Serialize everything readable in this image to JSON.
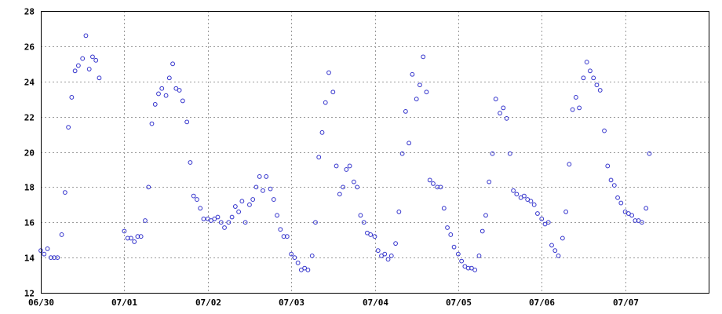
{
  "chart_data": {
    "type": "scatter",
    "title": "",
    "xlabel": "",
    "ylabel": "",
    "x_unit": "days since 06/30 00:00",
    "xlim": [
      0,
      8
    ],
    "ylim": [
      12,
      28
    ],
    "y_ticks": [
      12,
      14,
      16,
      18,
      20,
      22,
      24,
      26,
      28
    ],
    "x_ticks": [
      {
        "value": 0,
        "label": "06/30"
      },
      {
        "value": 1,
        "label": "07/01"
      },
      {
        "value": 2,
        "label": "07/02"
      },
      {
        "value": 3,
        "label": "07/03"
      },
      {
        "value": 4,
        "label": "07/04"
      },
      {
        "value": 5,
        "label": "07/05"
      },
      {
        "value": 6,
        "label": "07/06"
      },
      {
        "value": 7,
        "label": "07/07"
      }
    ],
    "grid": true,
    "legend": "none",
    "marker_color": "#3333cc",
    "series": [
      {
        "x": [
          0.0,
          0.04,
          0.08,
          0.12,
          0.16,
          0.2,
          0.25,
          0.29,
          0.33,
          0.37,
          0.41,
          0.45,
          0.5,
          0.54,
          0.58,
          0.62,
          0.66,
          0.7,
          1.0,
          1.04,
          1.08,
          1.12,
          1.16,
          1.2,
          1.25,
          1.29,
          1.33,
          1.37,
          1.41,
          1.45,
          1.5,
          1.54,
          1.58,
          1.62,
          1.66,
          1.7,
          1.75,
          1.79,
          1.83,
          1.87,
          1.91,
          1.95,
          2.0,
          2.04,
          2.08,
          2.12,
          2.16,
          2.2,
          2.25,
          2.29,
          2.33,
          2.37,
          2.41,
          2.45,
          2.5,
          2.54,
          2.58,
          2.62,
          2.66,
          2.7,
          2.75,
          2.79,
          2.83,
          2.87,
          2.91,
          2.95,
          3.0,
          3.04,
          3.08,
          3.12,
          3.16,
          3.2,
          3.25,
          3.29,
          3.33,
          3.37,
          3.41,
          3.45,
          3.5,
          3.54,
          3.58,
          3.62,
          3.66,
          3.7,
          3.75,
          3.79,
          3.83,
          3.87,
          3.91,
          3.95,
          4.0,
          4.04,
          4.08,
          4.12,
          4.16,
          4.2,
          4.25,
          4.29,
          4.33,
          4.37,
          4.41,
          4.45,
          4.5,
          4.54,
          4.58,
          4.62,
          4.66,
          4.7,
          4.75,
          4.79,
          4.83,
          4.87,
          4.91,
          4.95,
          5.0,
          5.04,
          5.08,
          5.12,
          5.16,
          5.2,
          5.25,
          5.29,
          5.33,
          5.37,
          5.41,
          5.45,
          5.5,
          5.54,
          5.58,
          5.62,
          5.66,
          5.7,
          5.75,
          5.79,
          5.83,
          5.87,
          5.91,
          5.95,
          6.0,
          6.04,
          6.08,
          6.12,
          6.16,
          6.2,
          6.25,
          6.29,
          6.33,
          6.37,
          6.41,
          6.45,
          6.5,
          6.54,
          6.58,
          6.62,
          6.66,
          6.7,
          6.75,
          6.79,
          6.83,
          6.87,
          6.91,
          6.95,
          7.0,
          7.04,
          7.08,
          7.12,
          7.16,
          7.2,
          7.25,
          7.29
        ],
        "y": [
          14.4,
          14.2,
          14.5,
          14.0,
          14.0,
          14.0,
          15.3,
          17.7,
          21.4,
          23.1,
          24.6,
          24.9,
          25.3,
          26.6,
          24.7,
          25.4,
          25.2,
          24.2,
          15.5,
          15.1,
          15.1,
          14.9,
          15.2,
          15.2,
          16.1,
          18.0,
          21.6,
          22.7,
          23.3,
          23.6,
          23.2,
          24.2,
          25.0,
          23.6,
          23.5,
          22.9,
          21.7,
          19.4,
          17.5,
          17.3,
          16.8,
          16.2,
          16.2,
          16.1,
          16.2,
          16.3,
          16.0,
          15.7,
          16.0,
          16.3,
          16.9,
          16.6,
          17.2,
          16.0,
          17.0,
          17.3,
          18.0,
          18.6,
          17.8,
          18.6,
          17.9,
          17.3,
          16.4,
          15.6,
          15.2,
          15.2,
          14.2,
          14.0,
          13.7,
          13.3,
          13.4,
          13.3,
          14.1,
          16.0,
          19.7,
          21.1,
          22.8,
          24.5,
          23.4,
          19.2,
          17.6,
          18.0,
          19.0,
          19.2,
          18.3,
          18.0,
          16.4,
          16.0,
          15.4,
          15.3,
          15.2,
          14.4,
          14.1,
          14.2,
          13.9,
          14.1,
          14.8,
          16.6,
          19.9,
          22.3,
          20.5,
          24.4,
          23.0,
          23.8,
          25.4,
          23.4,
          18.4,
          18.2,
          18.0,
          18.0,
          16.8,
          15.7,
          15.3,
          14.6,
          14.2,
          13.8,
          13.5,
          13.4,
          13.4,
          13.3,
          14.1,
          15.5,
          16.4,
          18.3,
          19.9,
          23.0,
          22.2,
          22.5,
          21.9,
          19.9,
          17.8,
          17.6,
          17.4,
          17.5,
          17.3,
          17.2,
          17.0,
          16.5,
          16.2,
          15.9,
          16.0,
          14.7,
          14.4,
          14.1,
          15.1,
          16.6,
          19.3,
          22.4,
          23.1,
          22.5,
          24.2,
          25.1,
          24.6,
          24.2,
          23.8,
          23.5,
          21.2,
          19.2,
          18.4,
          18.1,
          17.4,
          17.1,
          16.6,
          16.5,
          16.4,
          16.1,
          16.1,
          16.0,
          16.8,
          19.9
        ]
      }
    ]
  }
}
